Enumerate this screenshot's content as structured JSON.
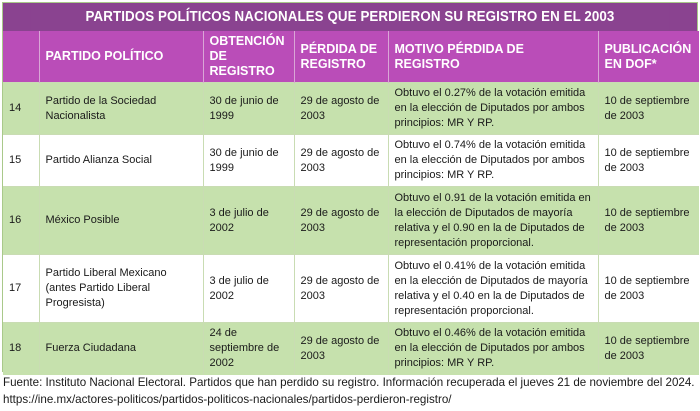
{
  "title": "PARTIDOS POLÍTICOS NACIONALES QUE PERDIERON SU REGISTRO EN EL 2003",
  "columns": [
    "",
    "PARTIDO POLÍTICO",
    "OBTENCIÓN DE REGISTRO",
    "PÉRDIDA DE REGISTRO",
    "MOTIVO PÉRDIDA DE REGISTRO",
    "PUBLICACIÓN EN DOF*"
  ],
  "rows": [
    {
      "num": "14",
      "party": "Partido de la Sociedad Nacionalista",
      "obtained": "30 de junio de 1999",
      "lost": "29 de agosto de 2003",
      "reason": "Obtuvo el 0.27% de la votación emitida en la elección de Diputados por ambos principios: MR Y RP.",
      "published": "10 de septiembre de 2003"
    },
    {
      "num": "15",
      "party": "Partido Alianza Social",
      "obtained": "30 de junio de 1999",
      "lost": "29 de agosto de 2003",
      "reason": "Obtuvo el 0.74% de la votación emitida en la elección de Diputados por ambos principios: MR Y RP.",
      "published": "10 de septiembre de 2003"
    },
    {
      "num": "16",
      "party": "México Posible",
      "obtained": "3 de julio de 2002",
      "lost": "29 de agosto de 2003",
      "reason": "Obtuvo el 0.91 de la votación emitida en la elección de Diputados de mayoría relativa y el 0.90 en la de Diputados de representación proporcional.",
      "published": "10 de septiembre de 2003"
    },
    {
      "num": "17",
      "party": "Partido Liberal Mexicano (antes Partido Liberal Progresista)",
      "obtained": "3 de julio de 2002",
      "lost": "29 de agosto de 2003",
      "reason": "Obtuvo el 0.41% de la votación emitida en la elección de Diputados de mayoría relativa y el 0.40 en la de Diputados de representación proporcional.",
      "published": "10 de septiembre de 2003"
    },
    {
      "num": "18",
      "party": "Fuerza Ciudadana",
      "obtained": "24 de septiembre de 2002",
      "lost": "29 de agosto de 2003",
      "reason": "Obtuvo el 0.46% de la votación emitida en la elección de Diputados por ambos principios: MR Y RP.",
      "published": "10 de septiembre de 2003"
    }
  ],
  "footer": {
    "line1": "Fuente: Instituto Nacional Electoral. Partidos que han perdido su registro. Información recuperada el jueves 21 de noviembre del 2024.",
    "line2": "https://ine.mx/actores-politicos/partidos-politicos-nacionales/partidos-perdieron-registro/"
  },
  "colors": {
    "title_bg": "#8a4390",
    "header_bg": "#ba4db8",
    "row_green": "#c6e1ad",
    "row_white": "#ffffff"
  }
}
